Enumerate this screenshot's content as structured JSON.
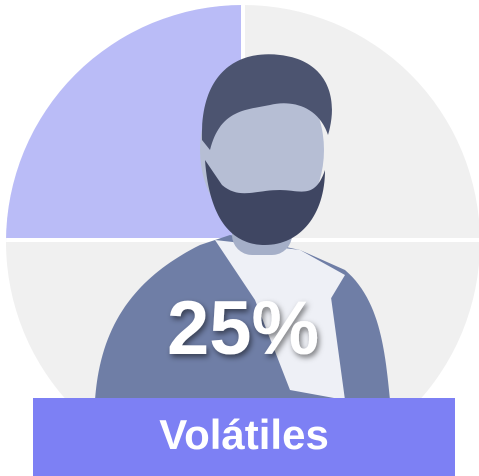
{
  "chart_data": {
    "type": "pie",
    "values": [
      25
    ],
    "value_labels": [
      "25%"
    ],
    "label": "Volátiles",
    "colors": [
      "#babcf7"
    ],
    "rest_color": "#f0f0f0",
    "label_color": "#7d80f4"
  }
}
